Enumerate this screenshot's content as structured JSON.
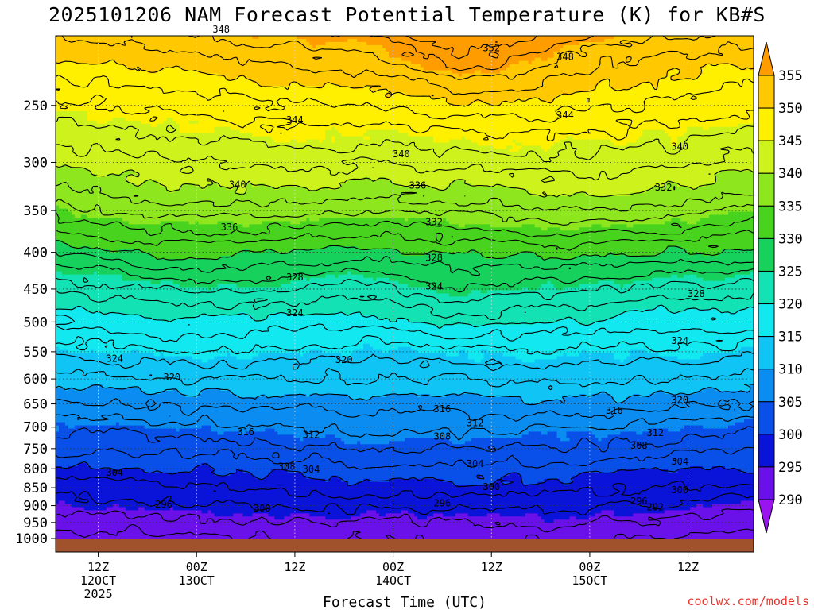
{
  "title": "2025101206 NAM Forecast Potential Temperature (K) for KB#S",
  "credit": "coolwx.com/models",
  "chart_data": {
    "type": "heatmap",
    "title": "2025101206 NAM Forecast Potential Temperature (K) for KB#S",
    "xlabel": "Forecast Time (UTC)",
    "ylabel": "",
    "y_axis": {
      "unit": "hPa",
      "reversed": true,
      "scale": "log-pressure",
      "ticks": [
        250,
        300,
        350,
        400,
        450,
        500,
        550,
        600,
        650,
        700,
        750,
        800,
        850,
        900,
        950,
        1000
      ]
    },
    "x_axis": {
      "ticks": [
        {
          "label": "12Z",
          "sub": "12OCT",
          "sub2": "2025"
        },
        {
          "label": "00Z",
          "sub": "13OCT",
          "sub2": ""
        },
        {
          "label": "12Z",
          "sub": "",
          "sub2": ""
        },
        {
          "label": "00Z",
          "sub": "14OCT",
          "sub2": ""
        },
        {
          "label": "12Z",
          "sub": "",
          "sub2": ""
        },
        {
          "label": "00Z",
          "sub": "15OCT",
          "sub2": ""
        },
        {
          "label": "12Z",
          "sub": "",
          "sub2": ""
        }
      ]
    },
    "colorbar": {
      "levels": [
        355,
        350,
        345,
        340,
        335,
        330,
        325,
        320,
        315,
        310,
        305,
        300,
        295,
        290
      ],
      "colors": [
        "#ff9c00",
        "#ffc800",
        "#fff000",
        "#cdf21c",
        "#8ee61e",
        "#48d41e",
        "#16d25c",
        "#12e2b4",
        "#12e8f0",
        "#10c4f5",
        "#0a8cf0",
        "#0850e8",
        "#0a14d8",
        "#6a10e8",
        "#9a14f0"
      ]
    },
    "contour_labels": [
      {
        "v": 348,
        "t": 15,
        "p": 196
      },
      {
        "v": 352,
        "t": 48,
        "p": 208
      },
      {
        "v": 348,
        "t": 57,
        "p": 214
      },
      {
        "v": 344,
        "t": 24,
        "p": 262
      },
      {
        "v": 344,
        "t": 57,
        "p": 258
      },
      {
        "v": 340,
        "t": 37,
        "p": 292
      },
      {
        "v": 340,
        "t": 71,
        "p": 285
      },
      {
        "v": 340,
        "t": 17,
        "p": 322
      },
      {
        "v": 336,
        "t": 39,
        "p": 323
      },
      {
        "v": 332,
        "t": 69,
        "p": 325
      },
      {
        "v": 336,
        "t": 16,
        "p": 369
      },
      {
        "v": 332,
        "t": 41,
        "p": 363
      },
      {
        "v": 328,
        "t": 41,
        "p": 407
      },
      {
        "v": 328,
        "t": 24,
        "p": 433
      },
      {
        "v": 324,
        "t": 41,
        "p": 446
      },
      {
        "v": 328,
        "t": 73,
        "p": 457
      },
      {
        "v": 324,
        "t": 24,
        "p": 486
      },
      {
        "v": 324,
        "t": 71,
        "p": 531
      },
      {
        "v": 324,
        "t": 2,
        "p": 562
      },
      {
        "v": 320,
        "t": 30,
        "p": 564
      },
      {
        "v": 320,
        "t": 9,
        "p": 597
      },
      {
        "v": 320,
        "t": 71,
        "p": 642
      },
      {
        "v": 316,
        "t": 42,
        "p": 661
      },
      {
        "v": 316,
        "t": 63,
        "p": 664
      },
      {
        "v": 312,
        "t": 46,
        "p": 691
      },
      {
        "v": 316,
        "t": 18,
        "p": 711
      },
      {
        "v": 312,
        "t": 26,
        "p": 718
      },
      {
        "v": 308,
        "t": 42,
        "p": 721
      },
      {
        "v": 312,
        "t": 68,
        "p": 713
      },
      {
        "v": 308,
        "t": 66,
        "p": 743
      },
      {
        "v": 304,
        "t": 46,
        "p": 787
      },
      {
        "v": 304,
        "t": 71,
        "p": 781
      },
      {
        "v": 308,
        "t": 23,
        "p": 794
      },
      {
        "v": 304,
        "t": 26,
        "p": 802
      },
      {
        "v": 304,
        "t": 2,
        "p": 810
      },
      {
        "v": 300,
        "t": 48,
        "p": 848
      },
      {
        "v": 300,
        "t": 71,
        "p": 856
      },
      {
        "v": 296,
        "t": 8,
        "p": 897
      },
      {
        "v": 296,
        "t": 42,
        "p": 893
      },
      {
        "v": 296,
        "t": 66,
        "p": 887
      },
      {
        "v": 300,
        "t": 20,
        "p": 908
      },
      {
        "v": 292,
        "t": 68,
        "p": 904
      }
    ]
  }
}
